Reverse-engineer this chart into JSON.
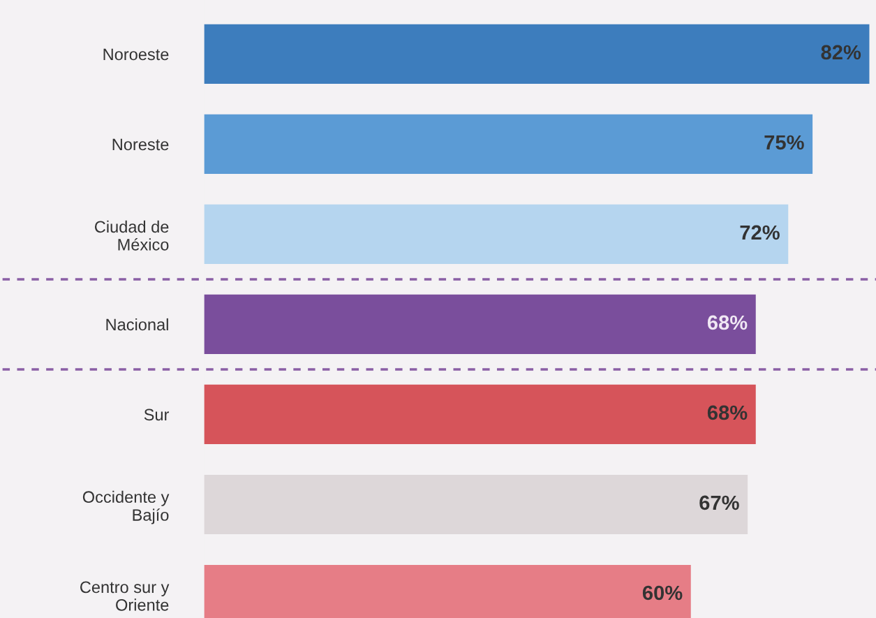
{
  "chart_data": {
    "type": "bar",
    "orientation": "horizontal",
    "categories": [
      "Noroeste",
      "Noreste",
      "Ciudad de\nMéxico",
      "Nacional",
      "Sur",
      "Occidente y\nBajío",
      "Centro sur y\nOriente"
    ],
    "values": [
      82,
      75,
      72,
      68,
      68,
      67,
      60
    ],
    "colors": [
      "#3d7dbd",
      "#5b9bd5",
      "#b5d5ef",
      "#7a4e9c",
      "#d6545a",
      "#ddd7d9",
      "#e67d86"
    ],
    "value_labels": [
      "82%",
      "75%",
      "72%",
      "68%",
      "68%",
      "67%",
      "60%"
    ],
    "grid": false,
    "legend": false
  }
}
